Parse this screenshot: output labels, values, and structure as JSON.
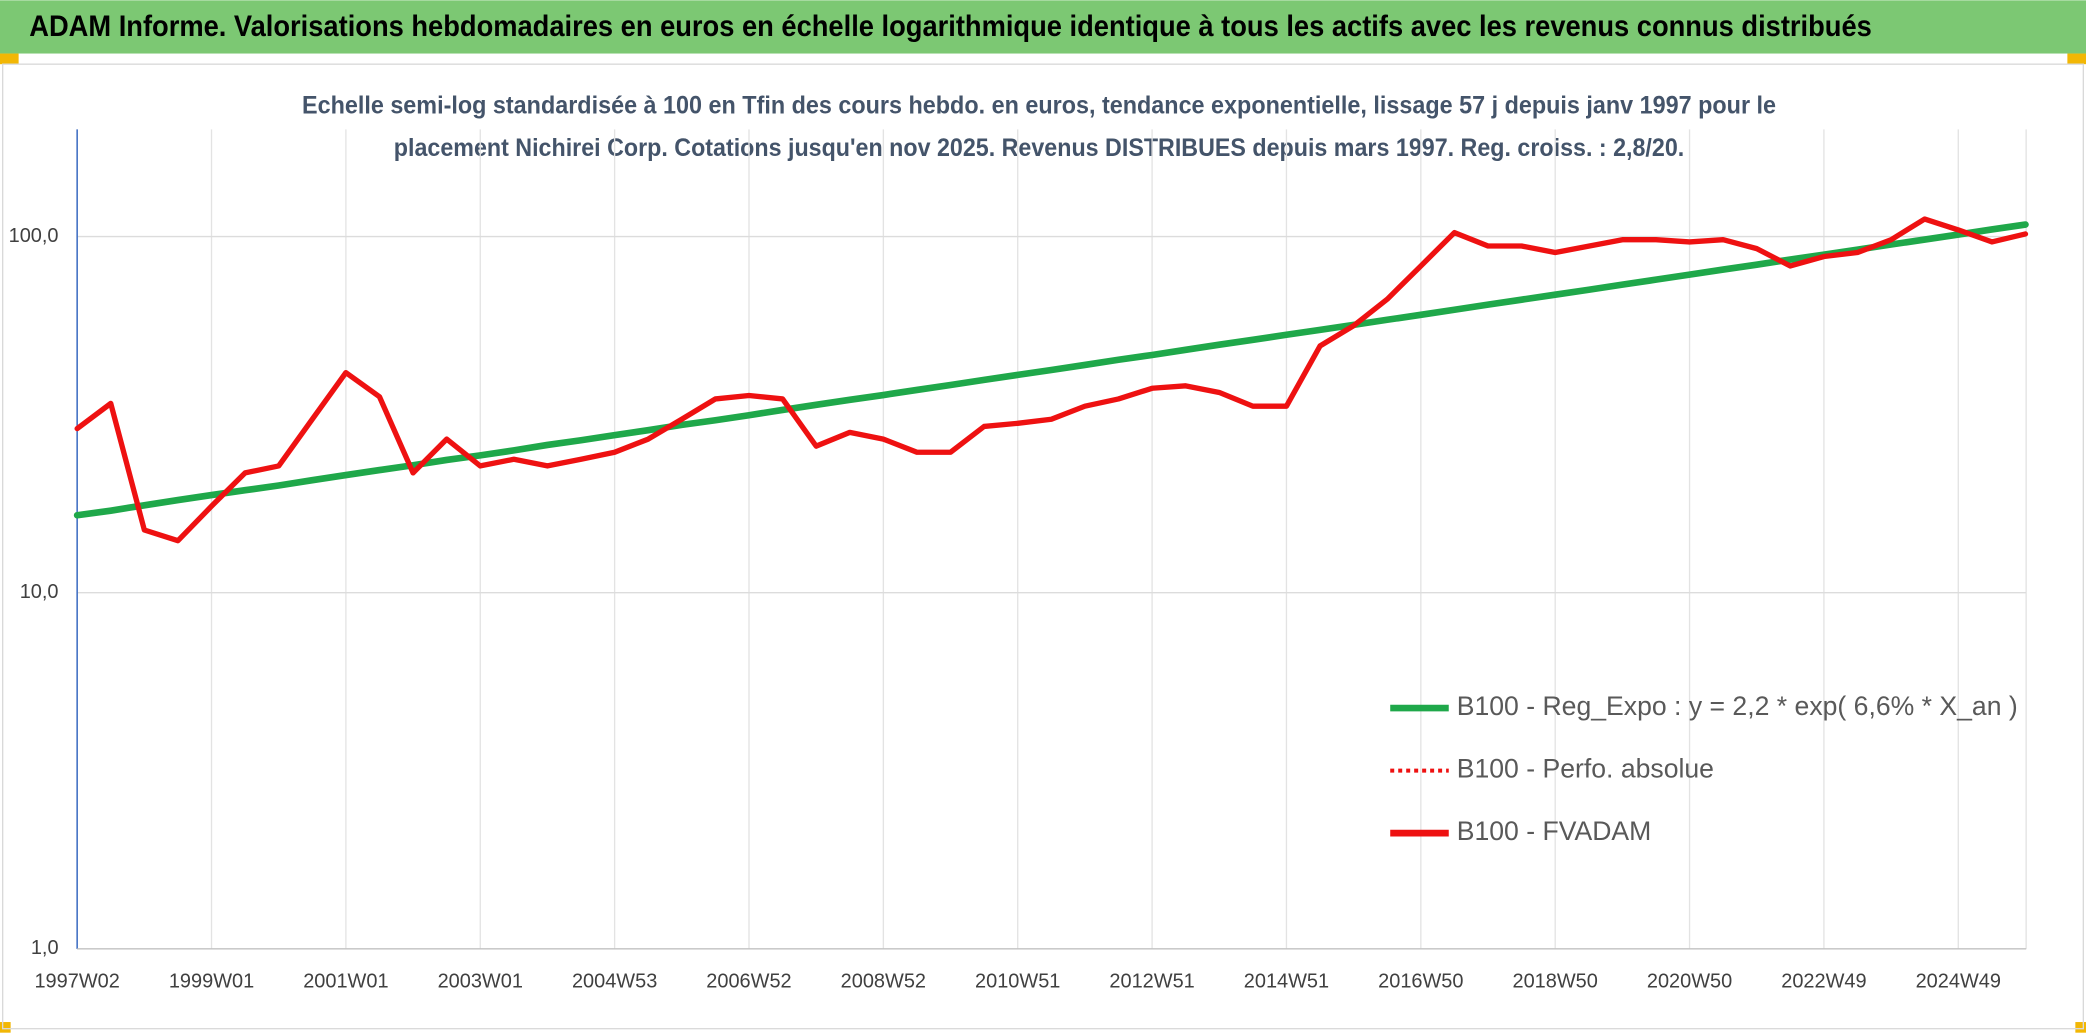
{
  "chart_data": {
    "type": "line",
    "header": "ADAM Informe. Valorisations hebdomadaires en euros en échelle logarithmique identique à tous les actifs avec les revenus connus distribués",
    "subtitle": [
      "Echelle semi-log standardisée à 100 en Tfin des cours hebdo. en euros, tendance exponentielle, lissage 57 j depuis janv 1997 pour le",
      "placement Nichirei Corp. Cotations jusqu'en nov 2025. Revenus DISTRIBUES depuis mars 1997. Reg. croiss. : 2,8/20."
    ],
    "categories": [
      "1997W02",
      null,
      null,
      null,
      "1999W01",
      null,
      null,
      null,
      "2001W01",
      null,
      null,
      null,
      "2003W01",
      null,
      null,
      null,
      "2004W53",
      null,
      null,
      null,
      "2006W52",
      null,
      null,
      null,
      "2008W52",
      null,
      null,
      null,
      "2010W51",
      null,
      null,
      null,
      "2012W51",
      null,
      null,
      null,
      "2014W51",
      null,
      null,
      null,
      "2016W50",
      null,
      null,
      null,
      "2018W50",
      null,
      null,
      null,
      "2020W50",
      null,
      null,
      null,
      "2022W49",
      null,
      null,
      null,
      "2024W49",
      null,
      null
    ],
    "series": [
      {
        "name": "B100 - Reg_Expo : y = 2,2 * exp( 6,6% *  X_an )",
        "color": "#1fa84a",
        "style": "solid",
        "values": [
          16.5,
          17.0,
          17.6,
          18.2,
          18.8,
          19.4,
          20.0,
          20.7,
          21.4,
          22.1,
          22.8,
          23.6,
          24.3,
          25.1,
          26.0,
          26.8,
          27.7,
          28.6,
          29.6,
          30.5,
          31.5,
          32.6,
          33.7,
          34.8,
          35.9,
          37.1,
          38.3,
          39.6,
          40.9,
          42.2,
          43.6,
          45.1,
          46.5,
          48.1,
          49.7,
          51.3,
          53.0,
          54.7,
          56.5,
          58.4,
          60.3,
          62.3,
          64.4,
          66.5,
          68.7,
          70.9,
          73.3,
          75.7,
          78.2,
          80.8,
          83.4,
          86.2,
          89.0,
          91.9,
          95.0,
          98.1,
          101.3,
          104.7,
          108.1
        ]
      },
      {
        "name": "B100 - Perfo. absolue",
        "color": "#ee1111",
        "style": "dotted",
        "values": [
          28.9,
          34,
          15,
          14,
          17.5,
          21.7,
          22.7,
          30.7,
          41.5,
          35.5,
          21.7,
          27,
          22.7,
          23.7,
          22.7,
          23.7,
          24.8,
          27,
          30.7,
          35,
          35.8,
          35,
          25.8,
          28.2,
          27,
          24.8,
          24.8,
          29.3,
          29.9,
          30.7,
          33.4,
          35,
          37.5,
          38.1,
          36.5,
          33.4,
          33.4,
          49.3,
          56.2,
          66.7,
          82.7,
          102.6,
          94.1,
          94.1,
          90.2,
          94,
          98,
          98,
          96.6,
          98,
          92.5,
          82.7,
          87.9,
          90.2,
          98,
          112,
          104.4,
          96.6,
          101.7
        ]
      },
      {
        "name": "B100 - FVADAM",
        "color": "#ee1111",
        "style": "solid",
        "values": [
          28.9,
          34,
          15,
          14,
          17.5,
          21.7,
          22.7,
          30.7,
          41.5,
          35.5,
          21.7,
          27,
          22.7,
          23.7,
          22.7,
          23.7,
          24.8,
          27,
          30.7,
          35,
          35.8,
          35,
          25.8,
          28.2,
          27,
          24.8,
          24.8,
          29.3,
          29.9,
          30.7,
          33.4,
          35,
          37.5,
          38.1,
          36.5,
          33.4,
          33.4,
          49.3,
          56.2,
          66.7,
          82.7,
          102.6,
          94.1,
          94.1,
          90.2,
          94,
          98,
          98,
          96.6,
          98,
          92.5,
          82.7,
          87.9,
          90.2,
          98,
          112,
          104.4,
          96.6,
          101.7
        ]
      }
    ],
    "ylim": [
      1,
      200
    ],
    "yticks": [
      {
        "value": 1,
        "label": "1,0"
      },
      {
        "value": 10,
        "label": "10,0"
      },
      {
        "value": 100,
        "label": "100,0"
      }
    ],
    "log_scale": true,
    "grid": true,
    "legend": "lower right"
  }
}
